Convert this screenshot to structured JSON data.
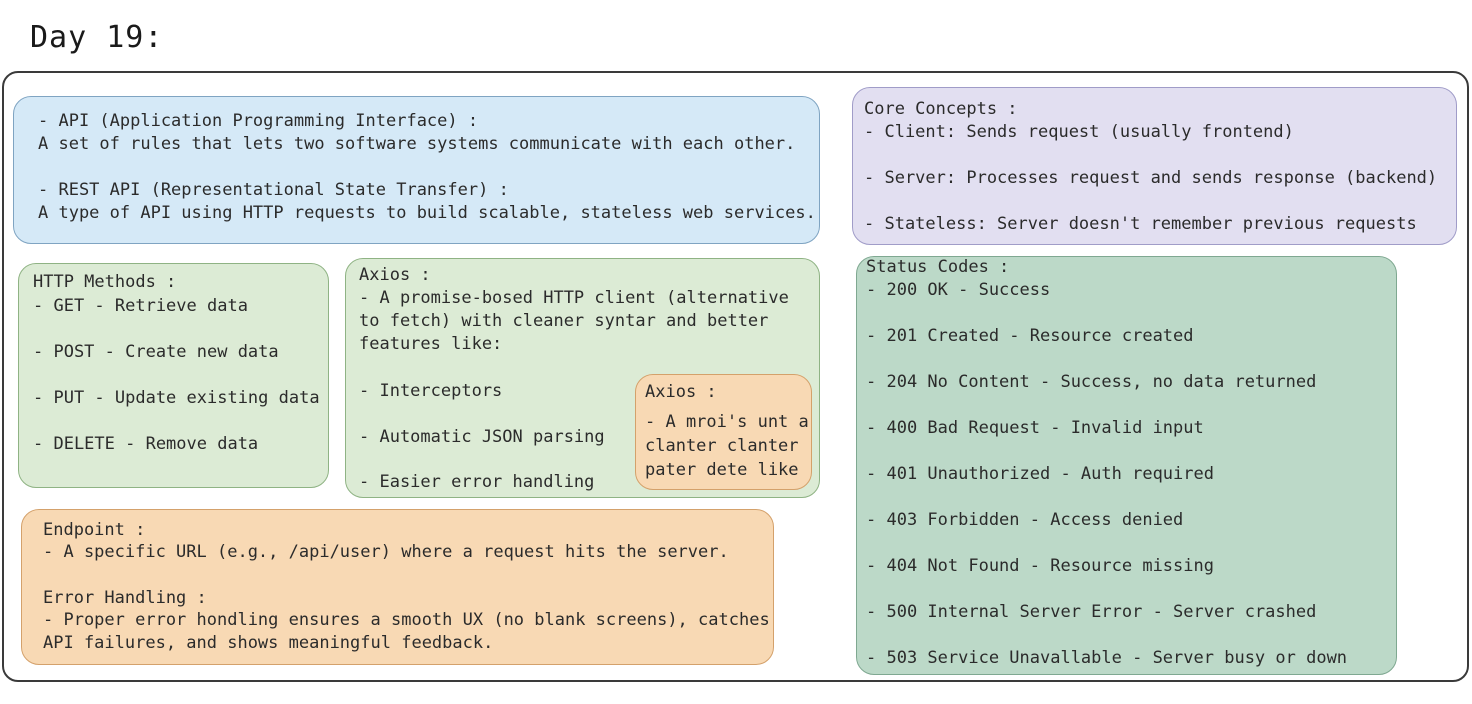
{
  "page_title": "Day 19:",
  "api_box": {
    "api_heading": "- API (Application Programming Interface) :",
    "api_desc": "A set of rules that lets two software systems communicate with each other.",
    "rest_heading": "- REST API (Representational State Transfer) :",
    "rest_desc": "A type of API using HTTP requests to build scalable, stateless web services."
  },
  "core_concepts": {
    "heading": "Core Concepts :",
    "items": [
      "- Client: Sends request (usually frontend)",
      "- Server: Processes request and sends response (backend)",
      "- Stateless: Server doesn't remember previous requests"
    ]
  },
  "http_methods": {
    "heading": "HTTP Methods :",
    "items": [
      "- GET - Retrieve data",
      "- POST - Create new data",
      "- PUT - Update existing data",
      "- DELETE - Remove data"
    ]
  },
  "axios": {
    "heading": "Axios :",
    "desc_lines": [
      "- A promise-bosed HTTP client (alternative",
      "to fetch) with cleaner syntar and better",
      "features like:"
    ],
    "features": [
      "- Interceptors",
      "- Automatic JSON parsing",
      "- Easier error handling"
    ]
  },
  "axios_small": {
    "heading": "Axios :",
    "lines": [
      "- A mroi's unt a",
      "clanter clanter",
      "pater dete like"
    ]
  },
  "status_codes": {
    "heading": "Status Codes :",
    "items": [
      "- 200 OK - Success",
      "- 201 Created - Resource created",
      "- 204 No Content - Success, no data returned",
      "- 400 Bad Request - Invalid input",
      "- 401 Unauthorized - Auth required",
      "- 403 Forbidden - Access denied",
      "- 404 Not Found - Resource missing",
      "- 500 Internal Server Error - Server crashed",
      "- 503 Service Unavallable - Server busy or down"
    ]
  },
  "endpoint_box": {
    "endpoint_heading": "Endpoint :",
    "endpoint_desc": "- A specific URL (e.g., /api/user) where a request hits the server.",
    "error_heading": "Error Handling :",
    "error_desc_1": "- Proper error hondling ensures a smooth UX (no blank screens), catches",
    "error_desc_2": "API failures, and shows meaningful feedback."
  },
  "colors": {
    "blue": "#d5e9f7",
    "purple": "#e2dff1",
    "green": "#dcebd5",
    "dark_green": "#bcd9c8",
    "orange": "#f8d9b4"
  }
}
